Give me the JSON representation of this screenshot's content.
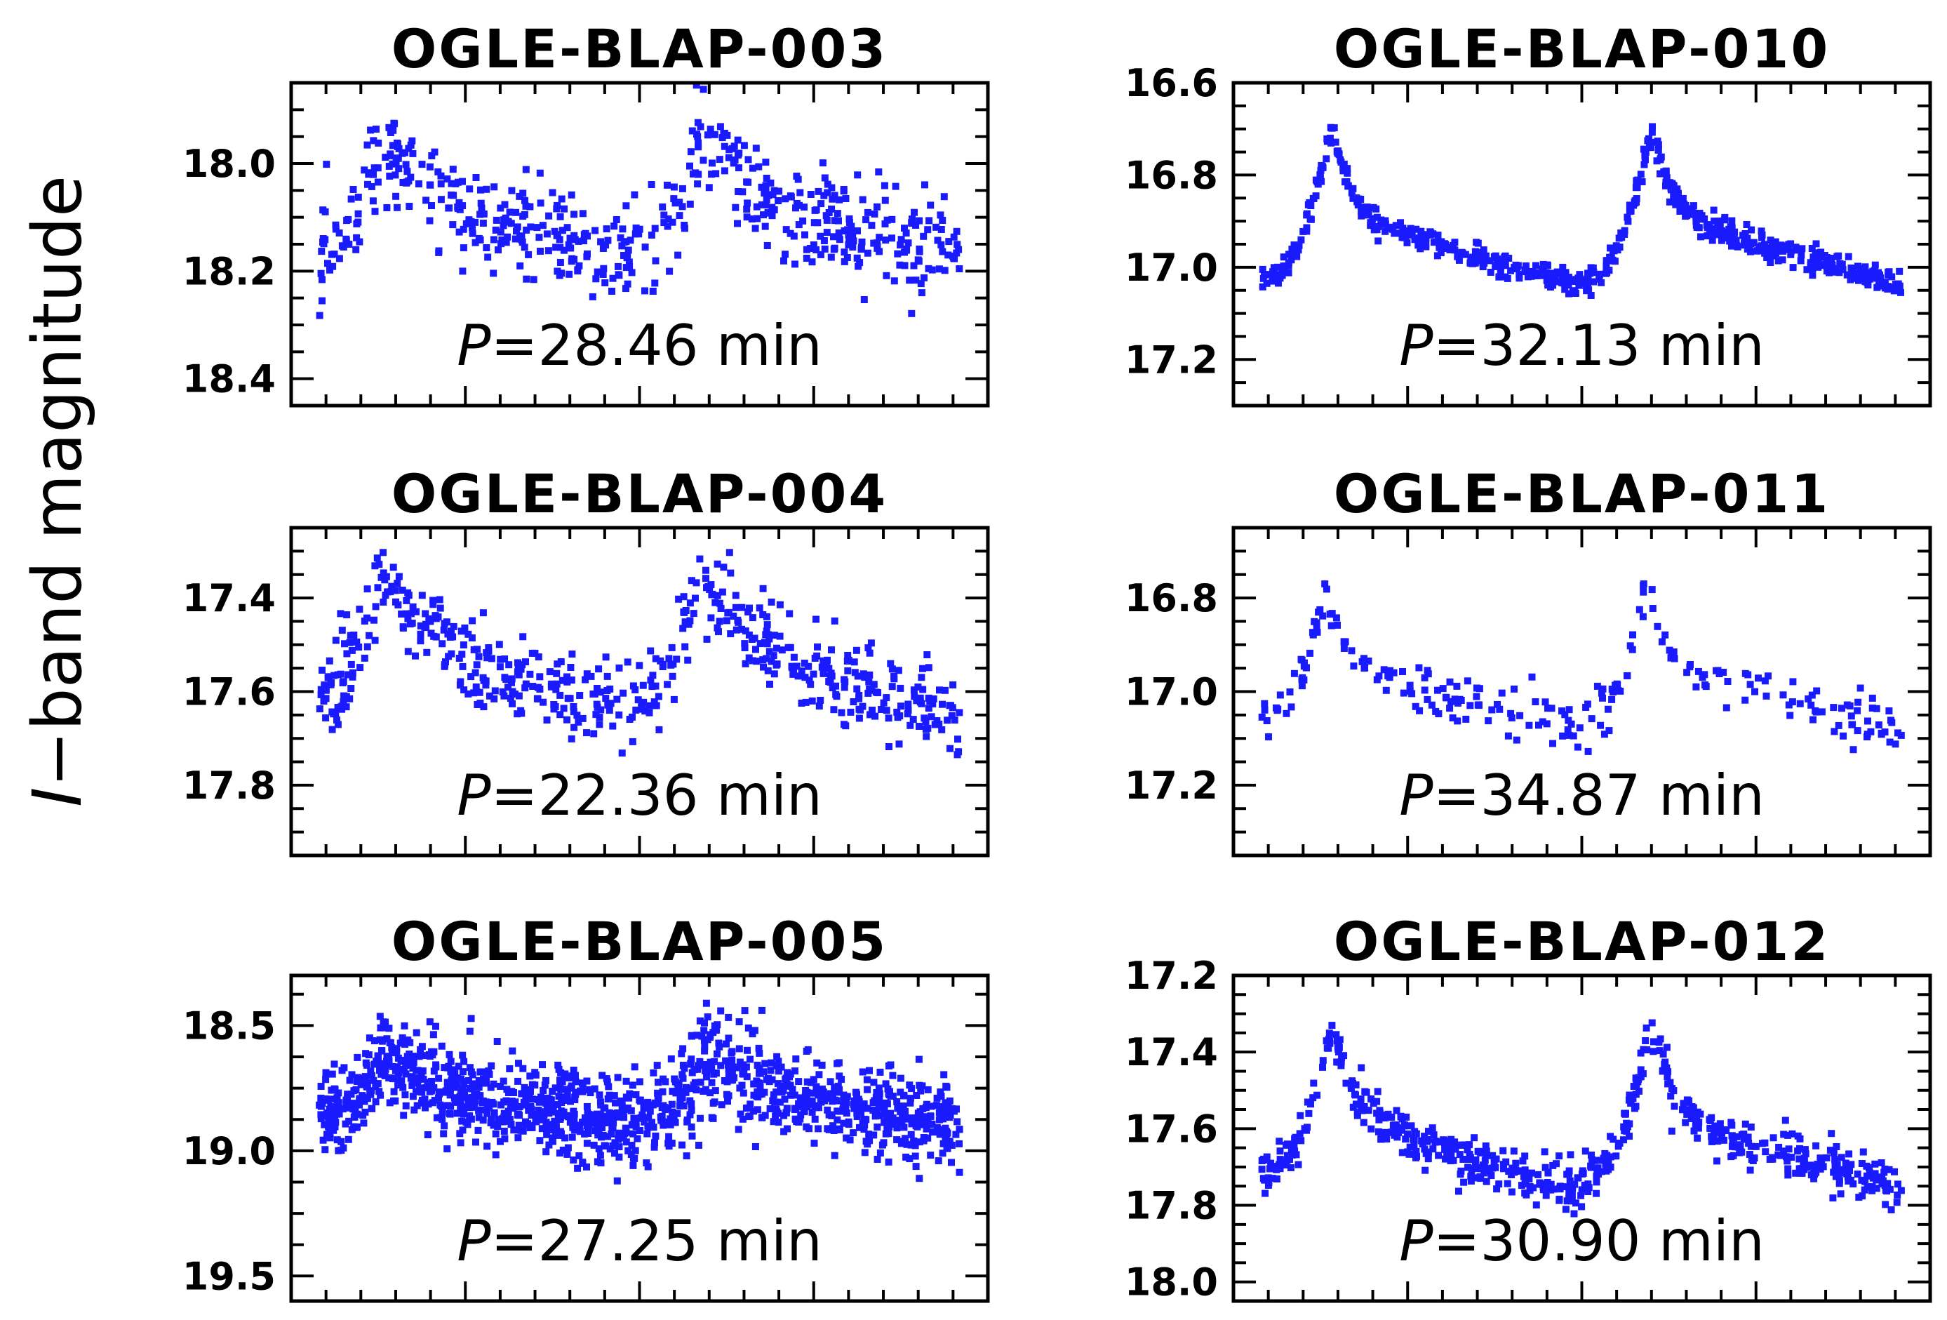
{
  "chart_data": {
    "type": "scatter",
    "ylabel": "I−band magnitude",
    "ylabel_italic_part": "I",
    "ylabel_rest": "−band magnitude",
    "point_color": "#1a1aff",
    "panels": [
      {
        "title": "OGLE-BLAP-003",
        "period_label": "P",
        "period_text": "=28.46 min",
        "ylim": [
          18.45,
          17.85
        ],
        "yticks": [
          "18.0",
          "18.2",
          "18.4"
        ],
        "ytick_values": [
          18.0,
          18.2,
          18.4
        ],
        "light_curve": {
          "min_mag": 17.93,
          "max_mag": 18.17,
          "start_mag": 18.16,
          "scatter": 0.045,
          "peak_phase": 0.2,
          "peak_width": 0.02,
          "points_per_cycle": 280
        }
      },
      {
        "title": "OGLE-BLAP-010",
        "period_label": "P",
        "period_text": "=32.13 min",
        "ylim": [
          17.3,
          16.6
        ],
        "yticks": [
          "16.6",
          "16.8",
          "17.0",
          "17.2"
        ],
        "ytick_values": [
          16.6,
          16.8,
          17.0,
          17.2
        ],
        "light_curve": {
          "min_mag": 16.69,
          "max_mag": 17.04,
          "start_mag": 17.03,
          "scatter": 0.014,
          "peak_phase": 0.22,
          "peak_width": 0.008,
          "points_per_cycle": 330
        }
      },
      {
        "title": "OGLE-BLAP-004",
        "period_label": "P",
        "period_text": "=22.36 min",
        "ylim": [
          17.95,
          17.25
        ],
        "yticks": [
          "17.4",
          "17.6",
          "17.8"
        ],
        "ytick_values": [
          17.4,
          17.6,
          17.8
        ],
        "light_curve": {
          "min_mag": 17.34,
          "max_mag": 17.64,
          "start_mag": 17.61,
          "scatter": 0.045,
          "peak_phase": 0.19,
          "peak_width": 0.025,
          "points_per_cycle": 280
        }
      },
      {
        "title": "OGLE-BLAP-011",
        "period_label": "P",
        "period_text": "=34.87 min",
        "ylim": [
          17.35,
          16.65
        ],
        "yticks": [
          "16.8",
          "17.0",
          "17.2"
        ],
        "ytick_values": [
          16.8,
          17.0,
          17.2
        ],
        "light_curve": {
          "min_mag": 16.77,
          "max_mag": 17.08,
          "start_mag": 17.06,
          "scatter": 0.028,
          "peak_phase": 0.2,
          "peak_width": 0.008,
          "points_per_cycle": 120
        }
      },
      {
        "title": "OGLE-BLAP-005",
        "period_label": "P",
        "period_text": "=27.25 min",
        "ylim": [
          19.6,
          18.3
        ],
        "yticks": [
          "18.5",
          "19.0",
          "19.5"
        ],
        "ytick_values": [
          18.5,
          19.0,
          19.5
        ],
        "light_curve": {
          "min_mag": 18.62,
          "max_mag": 18.9,
          "start_mag": 18.86,
          "scatter": 0.09,
          "peak_phase": 0.2,
          "peak_width": 0.04,
          "points_per_cycle": 650
        }
      },
      {
        "title": "OGLE-BLAP-012",
        "period_label": "P",
        "period_text": "=30.90 min",
        "ylim": [
          18.05,
          17.2
        ],
        "yticks": [
          "17.2",
          "17.4",
          "17.6",
          "17.8",
          "18.0"
        ],
        "ytick_values": [
          17.2,
          17.4,
          17.6,
          17.8,
          18.0
        ],
        "light_curve": {
          "min_mag": 17.33,
          "max_mag": 17.76,
          "start_mag": 17.72,
          "scatter": 0.03,
          "peak_phase": 0.22,
          "peak_width": 0.01,
          "points_per_cycle": 320
        }
      }
    ]
  }
}
